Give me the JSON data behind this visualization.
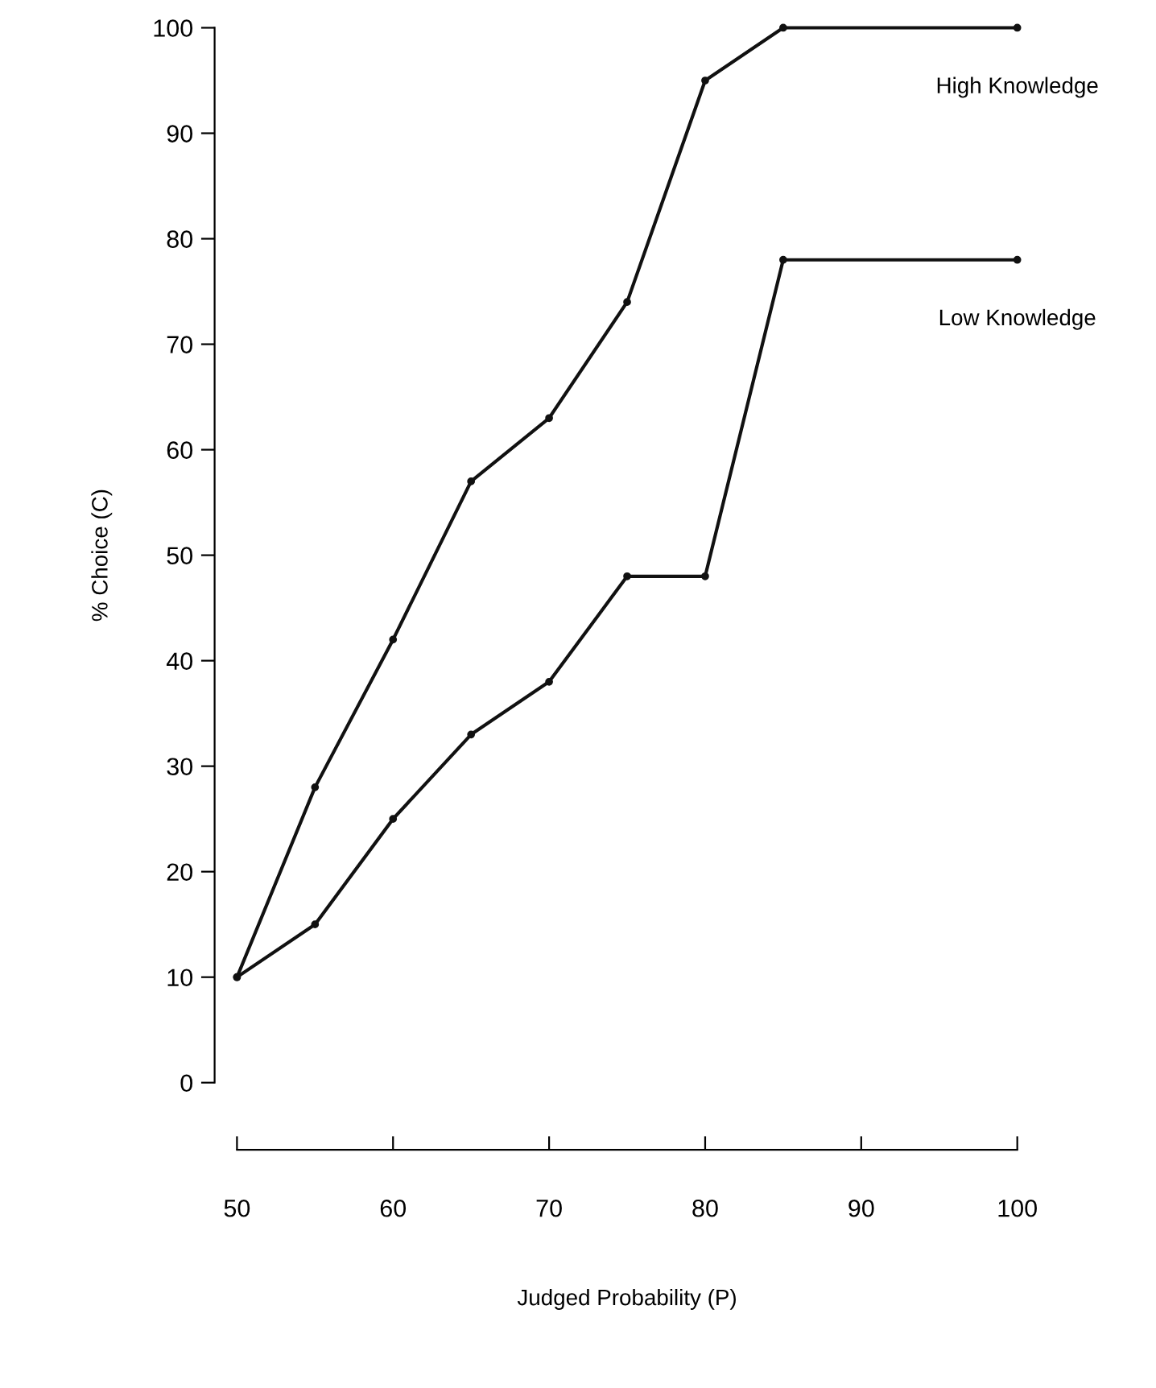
{
  "chart_data": {
    "type": "line",
    "xlabel": "Judged Probability (P)",
    "ylabel": "% Choice (C)",
    "x": [
      50,
      55,
      60,
      65,
      70,
      75,
      80,
      85,
      100
    ],
    "series": [
      {
        "name": "High Knowledge",
        "color": "#111111",
        "values": [
          10,
          28,
          42,
          57,
          63,
          74,
          95,
          100,
          100
        ]
      },
      {
        "name": "Low Knowledge",
        "color": "#111111",
        "values": [
          10,
          15,
          25,
          33,
          38,
          48,
          48,
          78,
          78
        ]
      }
    ],
    "xlim": [
      50,
      100
    ],
    "ylim": [
      0,
      100
    ],
    "xticks": [
      50,
      60,
      70,
      80,
      90,
      100
    ],
    "yticks": [
      0,
      10,
      20,
      30,
      40,
      50,
      60,
      70,
      80,
      90,
      100
    ],
    "grid": false,
    "legend": false,
    "marker": "circle",
    "line_style": "solid"
  }
}
